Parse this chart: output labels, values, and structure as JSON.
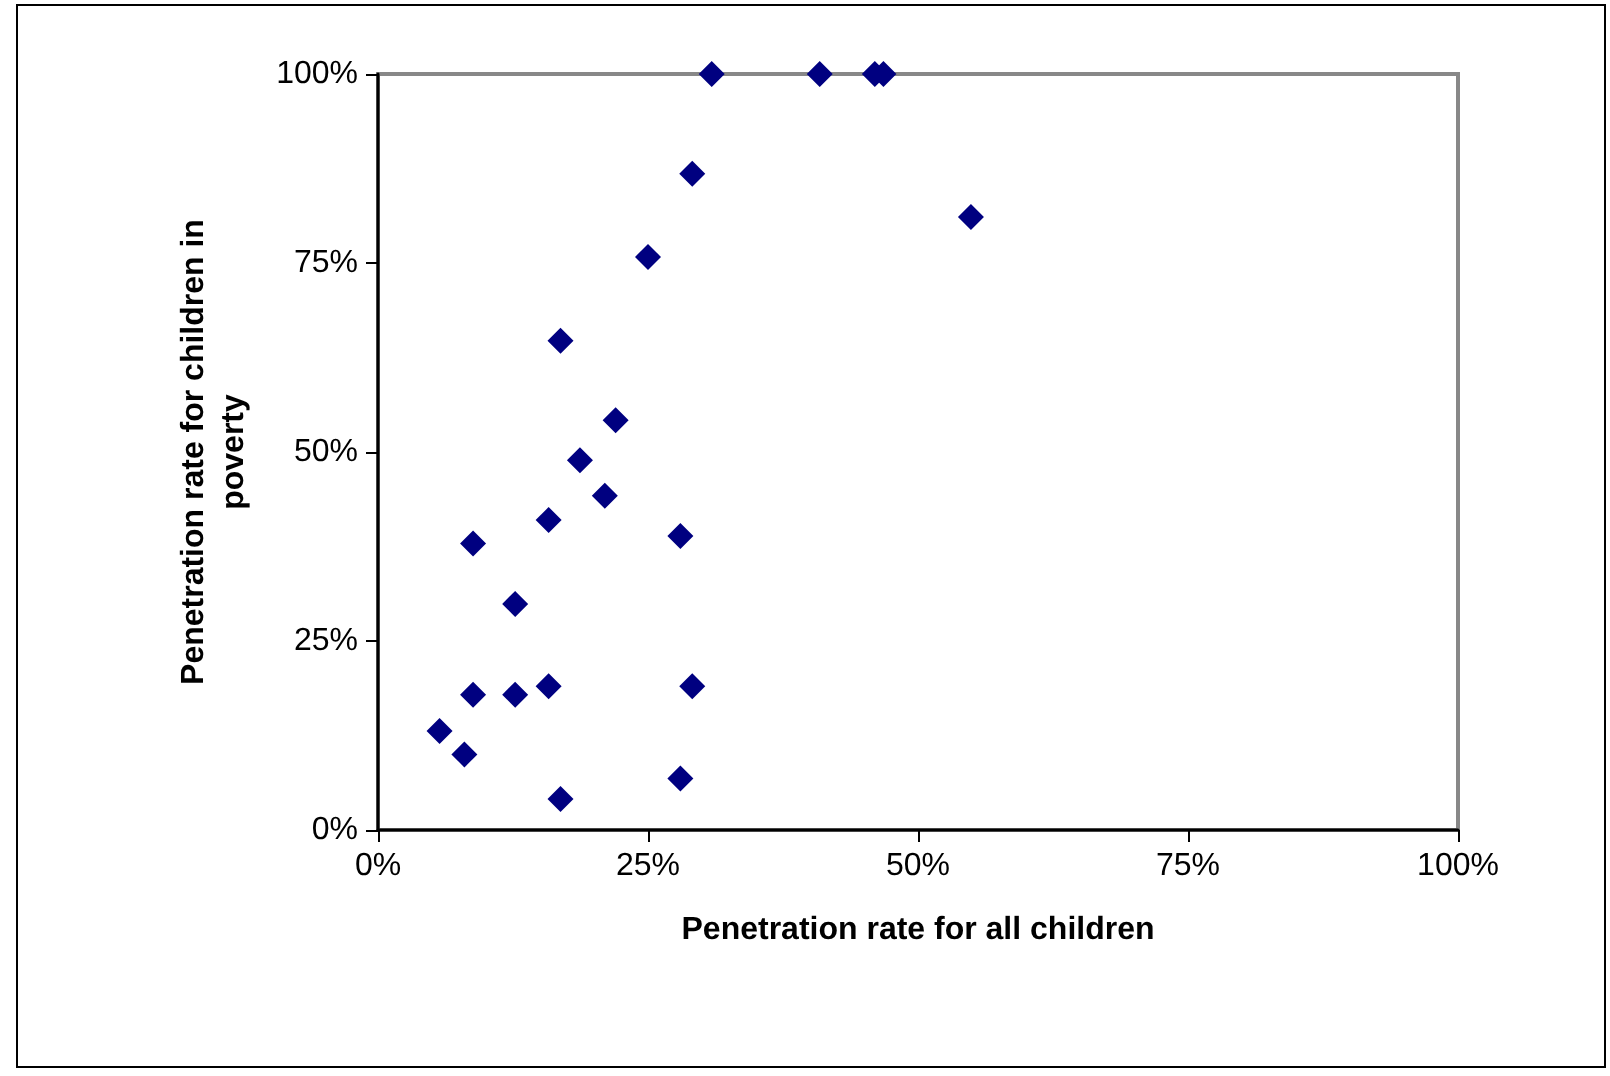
{
  "chart_data": {
    "type": "scatter",
    "xlabel": "Penetration rate for all children",
    "ylabel": "Penetration rate for children in poverty",
    "x": [
      30.9,
      40.9,
      46.0,
      46.8,
      29.1,
      54.9,
      25.0,
      16.9,
      22.0,
      18.7,
      21.0,
      15.8,
      8.8,
      28.0,
      12.7,
      8.8,
      12.7,
      15.8,
      29.1,
      5.7,
      8.0,
      28.0,
      16.9
    ],
    "series": [
      {
        "color": "#000080",
        "values": [
          100,
          100,
          100,
          100,
          86.8,
          81.1,
          75.8,
          64.7,
          54.2,
          48.9,
          44.2,
          41.0,
          37.9,
          38.9,
          29.9,
          17.9,
          17.9,
          19.0,
          19.0,
          13.1,
          10.0,
          6.8,
          4.1
        ]
      }
    ],
    "xlim": [
      0,
      100
    ],
    "xticks": [
      {
        "value": 0,
        "label": "0%"
      },
      {
        "value": 25,
        "label": "25%"
      },
      {
        "value": 50,
        "label": "50%"
      },
      {
        "value": 75,
        "label": "75%"
      },
      {
        "value": 100,
        "label": "100%"
      }
    ],
    "ylim": [
      0,
      100
    ],
    "yticks": [
      {
        "value": 0,
        "label": "0%"
      },
      {
        "value": 25,
        "label": "25%"
      },
      {
        "value": 50,
        "label": "50%"
      },
      {
        "value": 75,
        "label": "75%"
      },
      {
        "value": 100,
        "label": "100%"
      }
    ],
    "grid": false,
    "marker": "diamond"
  }
}
